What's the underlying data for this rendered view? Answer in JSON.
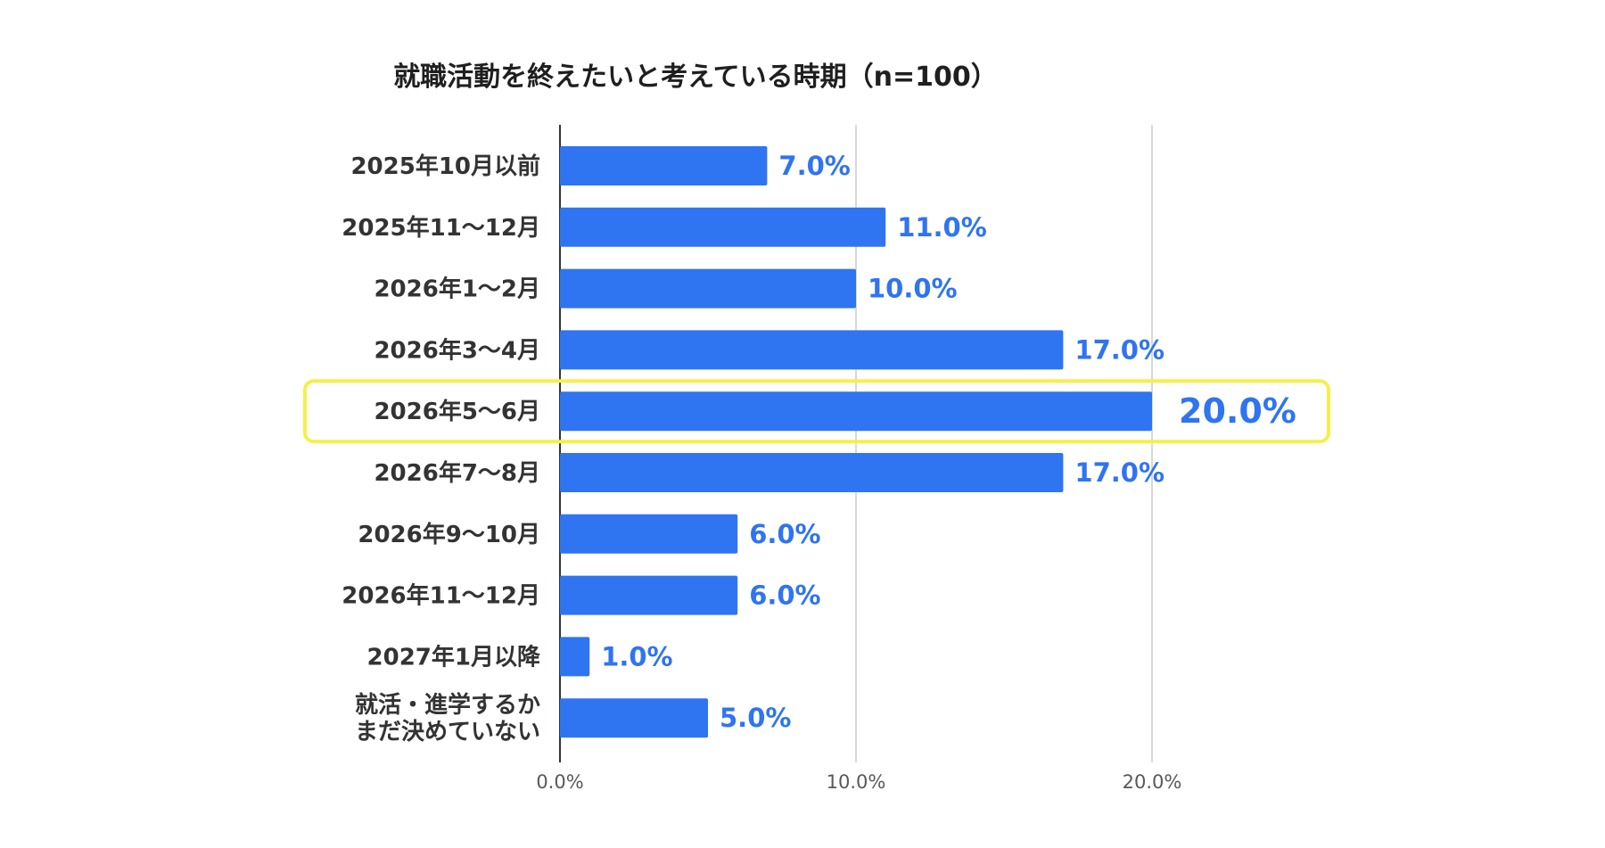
{
  "chart_data": {
    "type": "bar",
    "orientation": "horizontal",
    "title": "就職活動を終えたいと考えている時期（n=100）",
    "categories": [
      [
        "2025年10月以前"
      ],
      [
        "2025年11〜12月"
      ],
      [
        "2026年1〜2月"
      ],
      [
        "2026年3〜4月"
      ],
      [
        "2026年5〜6月"
      ],
      [
        "2026年7〜8月"
      ],
      [
        "2026年9〜10月"
      ],
      [
        "2026年11〜12月"
      ],
      [
        "2027年1月以降"
      ],
      [
        "就活・進学するか",
        "まだ決めていない"
      ]
    ],
    "values": [
      7.0,
      11.0,
      10.0,
      17.0,
      20.0,
      17.0,
      6.0,
      6.0,
      1.0,
      5.0
    ],
    "value_labels": [
      "7.0%",
      "11.0%",
      "10.0%",
      "17.0%",
      "20.0%",
      "17.0%",
      "6.0%",
      "6.0%",
      "1.0%",
      "5.0%"
    ],
    "highlight_index": 4,
    "xlim": [
      0,
      26
    ],
    "xticks": [
      0,
      10,
      20
    ],
    "xtick_labels": [
      "0.0%",
      "10.0%",
      "20.0%"
    ],
    "grid": true,
    "xlabel": "",
    "ylabel": ""
  },
  "colors": {
    "bar": "#2f74f0",
    "value_text": "#2f74f0",
    "highlight_box": "#f4f04a",
    "grid": "#cccccc",
    "axis": "#333333"
  }
}
